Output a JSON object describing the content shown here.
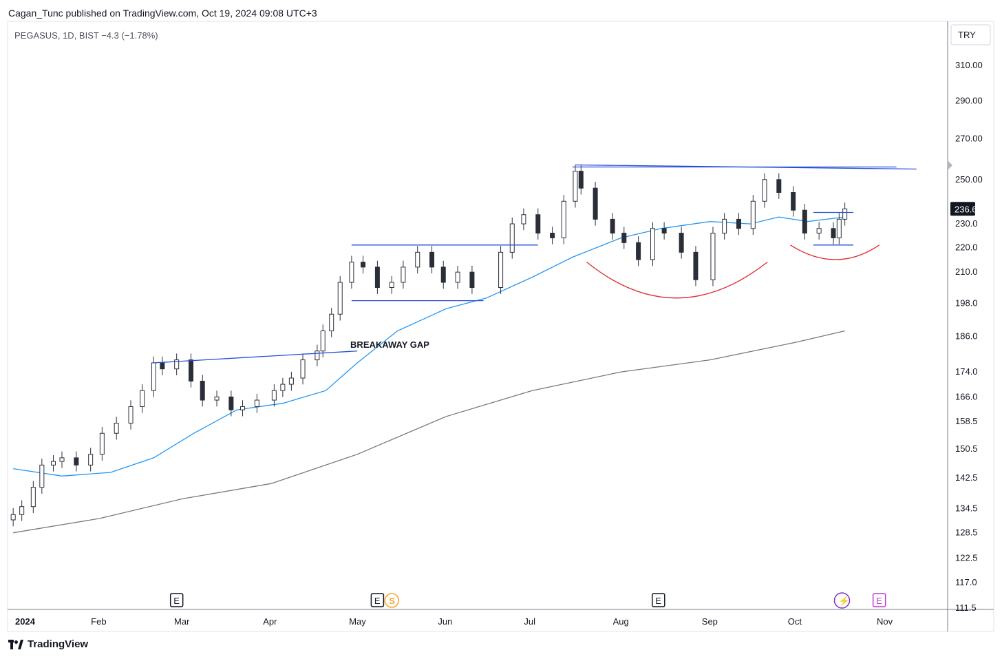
{
  "header": {
    "publisher_line": "Cagan_Tunc published on TradingView.com, Oct 19, 2024 09:08 UTC+3"
  },
  "legend": {
    "symbol_line": "PEGASUS, 1D, BIST  −4.3 (−1.78%)"
  },
  "currency_button": "TRY",
  "last_price_label": "236.6",
  "footer": {
    "brand": "TradingView"
  },
  "colors": {
    "up_candle": "#ffffff",
    "down_candle": "#2a2e39",
    "ma_short": "#2196f3",
    "ma_long": "#787878",
    "trendline": "#2550d9",
    "arc": "#e0303a",
    "event_dividend": "#f5a623",
    "event_earnings_purple": "#c436d6",
    "event_split_purple": "#7b2fbe"
  },
  "chart_data": {
    "type": "candlestick",
    "title": "PEGASUS, 1D, BIST",
    "scale": "log",
    "ylim": [
      111.5,
      325
    ],
    "y_ticks": [
      310.0,
      290.0,
      270.0,
      250.0,
      230.0,
      220.0,
      210.0,
      198.0,
      186.0,
      174.0,
      166.0,
      158.5,
      150.5,
      142.5,
      134.5,
      128.5,
      122.5,
      117.0,
      111.5
    ],
    "y_tick_labels": [
      "310.00",
      "290.00",
      "270.00",
      "250.00",
      "230.0",
      "220.0",
      "210.0",
      "198.0",
      "186.0",
      "174.0",
      "166.0",
      "158.5",
      "150.5",
      "142.5",
      "134.5",
      "128.5",
      "122.5",
      "117.0",
      "111.5"
    ],
    "xlim": [
      "2024-01-02",
      "2024-11-19"
    ],
    "x_ticks": [
      {
        "date": "2024-01-01",
        "label": "2024",
        "bold": true
      },
      {
        "date": "2024-02-01",
        "label": "Feb"
      },
      {
        "date": "2024-03-01",
        "label": "Mar"
      },
      {
        "date": "2024-04-01",
        "label": "Apr"
      },
      {
        "date": "2024-05-01",
        "label": "May"
      },
      {
        "date": "2024-06-01",
        "label": "Jun"
      },
      {
        "date": "2024-07-01",
        "label": "Jul"
      },
      {
        "date": "2024-08-01",
        "label": "Aug"
      },
      {
        "date": "2024-09-01",
        "label": "Sep"
      },
      {
        "date": "2024-10-01",
        "label": "Oct"
      },
      {
        "date": "2024-11-01",
        "label": "Nov"
      }
    ],
    "candles_close_approx": [
      {
        "date": "2024-01-02",
        "close": 133
      },
      {
        "date": "2024-01-05",
        "close": 135
      },
      {
        "date": "2024-01-09",
        "close": 140
      },
      {
        "date": "2024-01-12",
        "close": 146
      },
      {
        "date": "2024-01-16",
        "close": 147
      },
      {
        "date": "2024-01-19",
        "close": 148
      },
      {
        "date": "2024-01-24",
        "close": 146
      },
      {
        "date": "2024-01-29",
        "close": 149
      },
      {
        "date": "2024-02-02",
        "close": 155
      },
      {
        "date": "2024-02-07",
        "close": 158
      },
      {
        "date": "2024-02-12",
        "close": 163
      },
      {
        "date": "2024-02-16",
        "close": 168
      },
      {
        "date": "2024-02-20",
        "close": 177
      },
      {
        "date": "2024-02-23",
        "close": 175
      },
      {
        "date": "2024-02-28",
        "close": 178
      },
      {
        "date": "2024-03-04",
        "close": 171
      },
      {
        "date": "2024-03-08",
        "close": 165
      },
      {
        "date": "2024-03-13",
        "close": 166
      },
      {
        "date": "2024-03-18",
        "close": 162
      },
      {
        "date": "2024-03-22",
        "close": 163
      },
      {
        "date": "2024-03-27",
        "close": 165
      },
      {
        "date": "2024-04-02",
        "close": 168
      },
      {
        "date": "2024-04-05",
        "close": 170
      },
      {
        "date": "2024-04-08",
        "close": 172
      },
      {
        "date": "2024-04-12",
        "close": 178
      },
      {
        "date": "2024-04-17",
        "close": 181
      },
      {
        "date": "2024-04-19",
        "close": 188
      },
      {
        "date": "2024-04-22",
        "close": 194
      },
      {
        "date": "2024-04-25",
        "close": 206
      },
      {
        "date": "2024-04-29",
        "close": 214
      },
      {
        "date": "2024-05-03",
        "close": 212
      },
      {
        "date": "2024-05-08",
        "close": 204
      },
      {
        "date": "2024-05-13",
        "close": 206
      },
      {
        "date": "2024-05-17",
        "close": 212
      },
      {
        "date": "2024-05-22",
        "close": 218
      },
      {
        "date": "2024-05-27",
        "close": 212
      },
      {
        "date": "2024-05-31",
        "close": 206
      },
      {
        "date": "2024-06-05",
        "close": 210
      },
      {
        "date": "2024-06-10",
        "close": 204
      },
      {
        "date": "2024-06-20",
        "close": 218
      },
      {
        "date": "2024-06-24",
        "close": 230
      },
      {
        "date": "2024-06-28",
        "close": 234
      },
      {
        "date": "2024-07-03",
        "close": 226
      },
      {
        "date": "2024-07-08",
        "close": 224
      },
      {
        "date": "2024-07-12",
        "close": 240
      },
      {
        "date": "2024-07-16",
        "close": 254
      },
      {
        "date": "2024-07-18",
        "close": 246
      },
      {
        "date": "2024-07-23",
        "close": 232
      },
      {
        "date": "2024-07-29",
        "close": 226
      },
      {
        "date": "2024-08-02",
        "close": 222
      },
      {
        "date": "2024-08-07",
        "close": 215
      },
      {
        "date": "2024-08-12",
        "close": 228
      },
      {
        "date": "2024-08-16",
        "close": 226
      },
      {
        "date": "2024-08-22",
        "close": 218
      },
      {
        "date": "2024-08-27",
        "close": 207
      },
      {
        "date": "2024-09-02",
        "close": 226
      },
      {
        "date": "2024-09-06",
        "close": 232
      },
      {
        "date": "2024-09-11",
        "close": 228
      },
      {
        "date": "2024-09-16",
        "close": 240
      },
      {
        "date": "2024-09-20",
        "close": 250
      },
      {
        "date": "2024-09-25",
        "close": 244
      },
      {
        "date": "2024-09-30",
        "close": 236
      },
      {
        "date": "2024-10-04",
        "close": 226
      },
      {
        "date": "2024-10-09",
        "close": 228
      },
      {
        "date": "2024-10-14",
        "close": 224
      },
      {
        "date": "2024-10-16",
        "close": 232
      },
      {
        "date": "2024-10-18",
        "close": 236.6
      }
    ],
    "series": [
      {
        "name": "",
        "kind": "ma",
        "color_key": "ma_short",
        "points": [
          [
            "2024-01-02",
            145
          ],
          [
            "2024-01-19",
            143
          ],
          [
            "2024-02-05",
            144
          ],
          [
            "2024-02-20",
            148
          ],
          [
            "2024-03-05",
            155
          ],
          [
            "2024-03-20",
            162
          ],
          [
            "2024-04-05",
            164
          ],
          [
            "2024-04-20",
            168
          ],
          [
            "2024-05-01",
            177
          ],
          [
            "2024-05-15",
            188
          ],
          [
            "2024-06-01",
            196
          ],
          [
            "2024-06-15",
            200
          ],
          [
            "2024-07-01",
            208
          ],
          [
            "2024-07-15",
            216
          ],
          [
            "2024-08-01",
            224
          ],
          [
            "2024-08-15",
            228
          ],
          [
            "2024-09-01",
            231
          ],
          [
            "2024-09-15",
            230
          ],
          [
            "2024-09-25",
            233
          ],
          [
            "2024-10-05",
            231
          ],
          [
            "2024-10-18",
            233
          ]
        ]
      },
      {
        "name": "",
        "kind": "ma",
        "color_key": "ma_long",
        "points": [
          [
            "2024-01-02",
            128.5
          ],
          [
            "2024-02-01",
            132
          ],
          [
            "2024-03-01",
            137
          ],
          [
            "2024-04-01",
            141
          ],
          [
            "2024-05-01",
            149
          ],
          [
            "2024-06-01",
            160
          ],
          [
            "2024-07-01",
            168
          ],
          [
            "2024-08-01",
            174
          ],
          [
            "2024-09-01",
            178
          ],
          [
            "2024-10-01",
            184
          ],
          [
            "2024-10-18",
            188
          ]
        ]
      }
    ],
    "annotations": [
      {
        "kind": "trendline",
        "from": [
          "2024-02-20",
          177
        ],
        "to": [
          "2024-05-01",
          181
        ]
      },
      {
        "kind": "trendline",
        "from": [
          "2024-04-29",
          221
        ],
        "to": [
          "2024-07-03",
          221
        ]
      },
      {
        "kind": "trendline",
        "from": [
          "2024-04-29",
          199
        ],
        "to": [
          "2024-06-14",
          199
        ]
      },
      {
        "kind": "trendline",
        "from": [
          "2024-07-16",
          257
        ],
        "to": [
          "2024-11-12",
          255
        ]
      },
      {
        "kind": "trendline",
        "from": [
          "2024-07-15",
          256
        ],
        "to": [
          "2024-11-05",
          256
        ]
      },
      {
        "kind": "trendline",
        "from": [
          "2024-10-07",
          235
        ],
        "to": [
          "2024-10-21",
          235
        ]
      },
      {
        "kind": "trendline",
        "from": [
          "2024-10-07",
          221
        ],
        "to": [
          "2024-10-21",
          221
        ]
      },
      {
        "kind": "text",
        "text": "BREAKAWAY GAP",
        "at": [
          "2024-04-30",
          183
        ]
      }
    ],
    "arcs": [
      {
        "from": [
          "2024-07-20",
          214
        ],
        "bottom": [
          "2024-08-20",
          200
        ],
        "to": [
          "2024-09-21",
          214
        ]
      },
      {
        "from": [
          "2024-09-29",
          221
        ],
        "bottom": [
          "2024-10-15",
          215
        ],
        "to": [
          "2024-10-30",
          221
        ]
      }
    ],
    "event_markers": [
      {
        "date": "2024-02-28",
        "glyph": "E",
        "kind": "earnings"
      },
      {
        "date": "2024-05-08",
        "glyph": "E",
        "kind": "earnings"
      },
      {
        "date": "2024-05-13",
        "glyph": "S",
        "kind": "dividend"
      },
      {
        "date": "2024-08-14",
        "glyph": "E",
        "kind": "earnings"
      },
      {
        "date": "2024-10-17",
        "glyph": "⚡",
        "kind": "split"
      },
      {
        "date": "2024-10-30",
        "glyph": "E",
        "kind": "earnings_upcoming"
      }
    ]
  }
}
